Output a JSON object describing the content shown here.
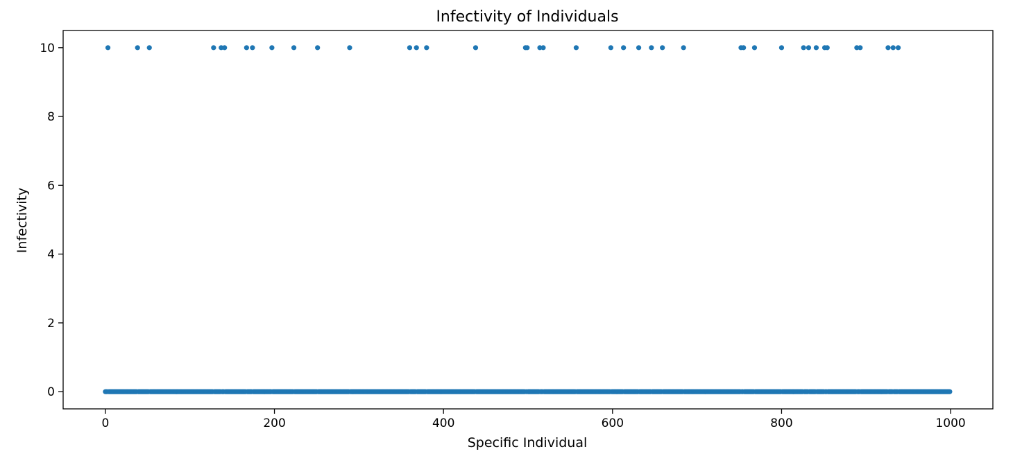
{
  "chart_data": {
    "type": "scatter",
    "title": "Infectivity of Individuals",
    "xlabel": "Specific Individual",
    "ylabel": "Infectivity",
    "xlim": [
      -50,
      1050
    ],
    "ylim": [
      -0.5,
      10.5
    ],
    "xticks": [
      0,
      200,
      400,
      600,
      800,
      1000
    ],
    "yticks": [
      0,
      2,
      4,
      6,
      8,
      10
    ],
    "grid": false,
    "marker_color": "#1f77b4",
    "series": [
      {
        "baseline_x_range": [
          0,
          1000
        ],
        "baseline_y": 0,
        "high_y": 10,
        "high_x": [
          3,
          38,
          52,
          128,
          137,
          141,
          167,
          174,
          197,
          223,
          251,
          289,
          360,
          368,
          380,
          438,
          497,
          499,
          514,
          518,
          557,
          598,
          613,
          631,
          646,
          659,
          684,
          752,
          755,
          768,
          800,
          826,
          832,
          841,
          851,
          854,
          889,
          893,
          926,
          932,
          938
        ]
      }
    ]
  }
}
